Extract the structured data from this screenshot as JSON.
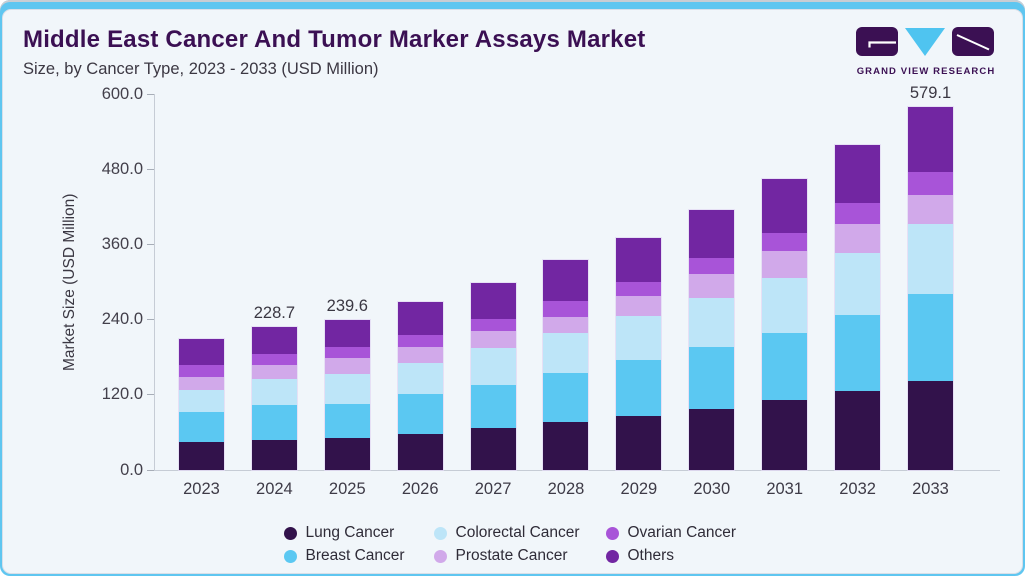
{
  "header": {
    "title": "Middle East Cancer And Tumor Marker Assays Market",
    "subtitle": "Size, by Cancer Type, 2023 - 2033 (USD Million)",
    "brand": "GRAND VIEW RESEARCH"
  },
  "colors": {
    "accent_strip": "#5fc6f0",
    "card_background": "#f1f6fa",
    "title_text": "#3b1053",
    "axis_line": "#c6ccd5",
    "label_text": "#3a3742",
    "logo_purple": "#3b1053",
    "logo_cyan": "#4fc4f0"
  },
  "chart_data": {
    "type": "bar",
    "stacked": true,
    "title": "Middle East Cancer And Tumor Marker Assays Market Size, by Cancer Type, 2023 - 2033 (USD Million)",
    "xlabel": "",
    "ylabel": "Market Size (USD Million)",
    "ylim": [
      0,
      600
    ],
    "yticks": [
      "0.0",
      "120.0",
      "240.0",
      "360.0",
      "480.0",
      "600.0"
    ],
    "grid": false,
    "legend_position": "bottom",
    "categories": [
      "2023",
      "2024",
      "2025",
      "2026",
      "2027",
      "2028",
      "2029",
      "2030",
      "2031",
      "2032",
      "2033"
    ],
    "series": [
      {
        "name": "Lung Cancer",
        "color": "#32124b",
        "values": [
          45.5,
          48.1,
          51.8,
          58.0,
          67.0,
          77.0,
          86.0,
          97.0,
          111.0,
          126.0,
          142.0
        ]
      },
      {
        "name": "Breast Cancer",
        "color": "#5bc8f2",
        "values": [
          47.5,
          55.3,
          52.8,
          64.0,
          69.0,
          78.0,
          89.0,
          99.0,
          107.0,
          122.0,
          139.0
        ]
      },
      {
        "name": "Colorectal Cancer",
        "color": "#bde5f8",
        "values": [
          34.5,
          41.4,
          49.0,
          48.0,
          59.0,
          63.0,
          70.0,
          79.0,
          89.0,
          99.0,
          111.0
        ]
      },
      {
        "name": "Prostate Cancer",
        "color": "#d1a9ea",
        "values": [
          20.5,
          23.2,
          25.1,
          26.5,
          26.5,
          27.0,
          33.0,
          38.0,
          43.0,
          46.0,
          47.5
        ]
      },
      {
        "name": "Ovarian Cancer",
        "color": "#a854d8",
        "values": [
          19.0,
          16.6,
          17.3,
          19.0,
          19.5,
          24.0,
          22.0,
          25.0,
          27.5,
          33.0,
          36.0
        ]
      },
      {
        "name": "Others",
        "color": "#7226a2",
        "values": [
          42.0,
          44.1,
          43.6,
          52.5,
          57.5,
          66.0,
          70.0,
          77.0,
          87.0,
          93.0,
          103.6
        ]
      }
    ],
    "estimated_totals": [
      209.0,
      228.7,
      239.6,
      268.0,
      298.5,
      335.0,
      370.0,
      415.0,
      464.5,
      519.0,
      579.1
    ],
    "bar_total_labels": {
      "2024": "228.7",
      "2025": "239.6",
      "2033": "579.1"
    },
    "legend_display_order": [
      "Lung Cancer",
      "Colorectal Cancer",
      "Ovarian Cancer",
      "Breast Cancer",
      "Prostate Cancer",
      "Others"
    ]
  }
}
